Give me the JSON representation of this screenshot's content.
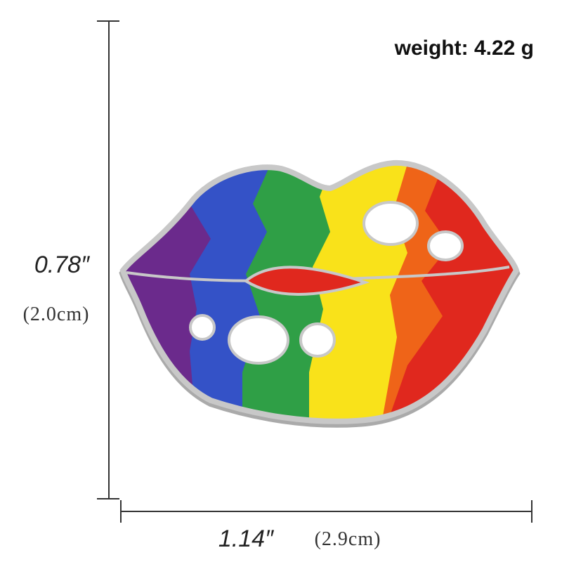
{
  "weight": "weight: 4.22 g",
  "height": {
    "inches": "0.78″",
    "cm": "(2.0cm)"
  },
  "width": {
    "inches": "1.14″",
    "cm": "(2.9cm)"
  }
}
